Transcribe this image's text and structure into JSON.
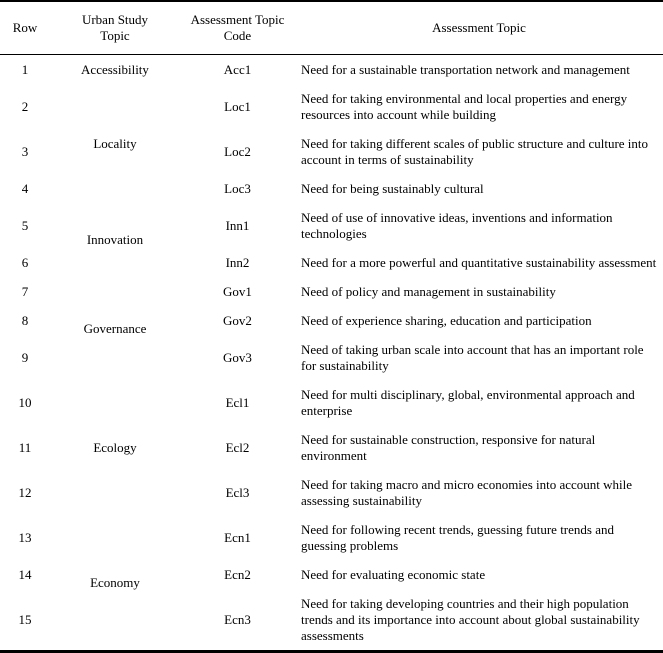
{
  "page": {
    "background": "#ffffff",
    "text_color": "#000000",
    "rule_color": "#000000"
  },
  "table": {
    "headers": [
      "Row",
      "Urban Study Topic",
      "Assessment Topic Code",
      "Assessment Topic"
    ],
    "groups": [
      {
        "topic": "Accessibility",
        "rows": [
          {
            "row": "1",
            "code": "Acc1",
            "assessment": "Need for a sustainable transportation network and management"
          }
        ]
      },
      {
        "topic": "Locality",
        "rows": [
          {
            "row": "2",
            "code": "Loc1",
            "assessment": "Need for taking environmental and local properties and energy resources into account while building"
          },
          {
            "row": "3",
            "code": "Loc2",
            "assessment": "Need for taking different scales of public structure and culture into account in terms of sustainability"
          },
          {
            "row": "4",
            "code": "Loc3",
            "assessment": "Need for being sustainably cultural"
          }
        ]
      },
      {
        "topic": "Innovation",
        "rows": [
          {
            "row": "5",
            "code": "Inn1",
            "assessment": "Need of use of innovative ideas, inventions and information technologies"
          },
          {
            "row": "6",
            "code": "Inn2",
            "assessment": "Need for a more powerful and quantitative sustainability assessment"
          }
        ]
      },
      {
        "topic": "Governance",
        "rows": [
          {
            "row": "7",
            "code": "Gov1",
            "assessment": "Need of policy and management in sustainability"
          },
          {
            "row": "8",
            "code": "Gov2",
            "assessment": "Need of experience sharing, education and participation"
          },
          {
            "row": "9",
            "code": "Gov3",
            "assessment": "Need of taking urban scale into account that has an important role for sustainability"
          }
        ]
      },
      {
        "topic": "Ecology",
        "rows": [
          {
            "row": "10",
            "code": "Ecl1",
            "assessment": "Need for multi disciplinary, global, environmental approach and enterprise"
          },
          {
            "row": "11",
            "code": "Ecl2",
            "assessment": "Need for sustainable construction, responsive for natural environment"
          },
          {
            "row": "12",
            "code": "Ecl3",
            "assessment": "Need for taking macro and micro economies into account while assessing sustainability"
          }
        ]
      },
      {
        "topic": "Economy",
        "rows": [
          {
            "row": "13",
            "code": "Ecn1",
            "assessment": "Need for following recent trends, guessing future trends and guessing problems"
          },
          {
            "row": "14",
            "code": "Ecn2",
            "assessment": "Need for evaluating economic state"
          },
          {
            "row": "15",
            "code": "Ecn3",
            "assessment": "Need for taking developing countries and their high population trends and its importance into account about global sustainability assessments"
          }
        ]
      }
    ]
  }
}
